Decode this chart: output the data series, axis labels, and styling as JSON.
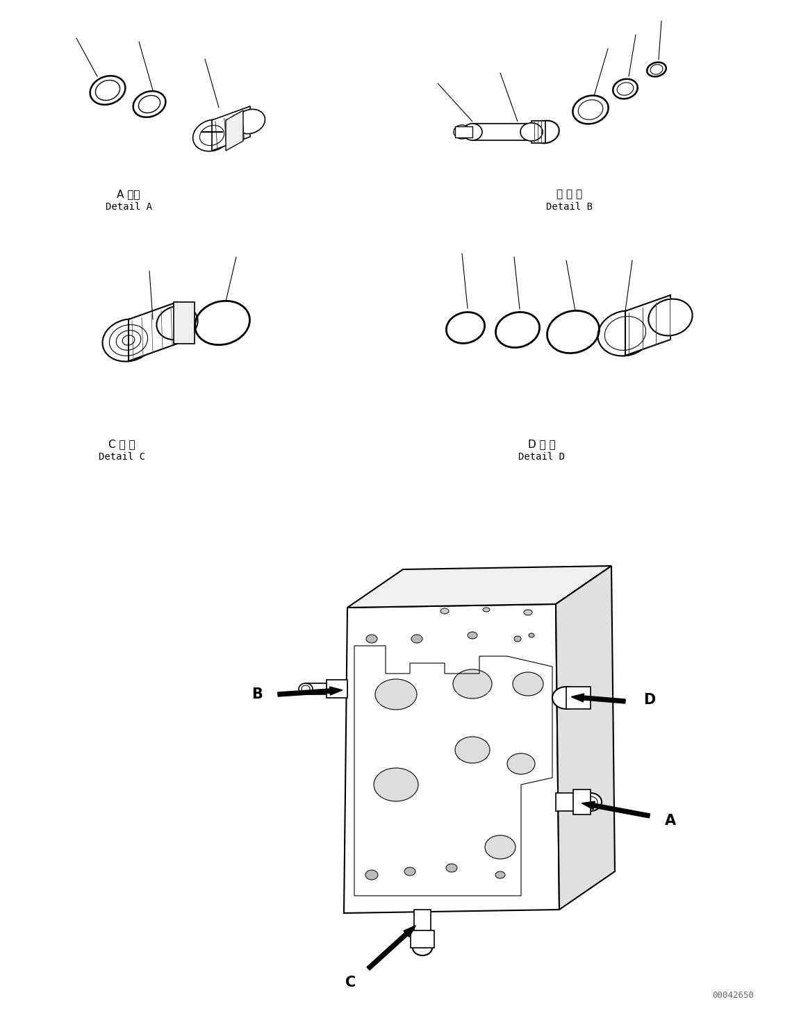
{
  "bg_color": "#ffffff",
  "line_color": "#000000",
  "fig_width": 11.63,
  "fig_height": 14.56,
  "dpi": 100,
  "title_A_jp": "A 詳細",
  "title_A_en": "Detail A",
  "title_B_jp": "日 詳 細",
  "title_B_en": "Detail B",
  "title_C_jp": "C 詳 細",
  "title_C_en": "Detail C",
  "title_D_jp": "D 詳 細",
  "title_D_en": "Detail D",
  "watermark": "00042650",
  "font_size_label": 11,
  "font_size_callout": 15
}
